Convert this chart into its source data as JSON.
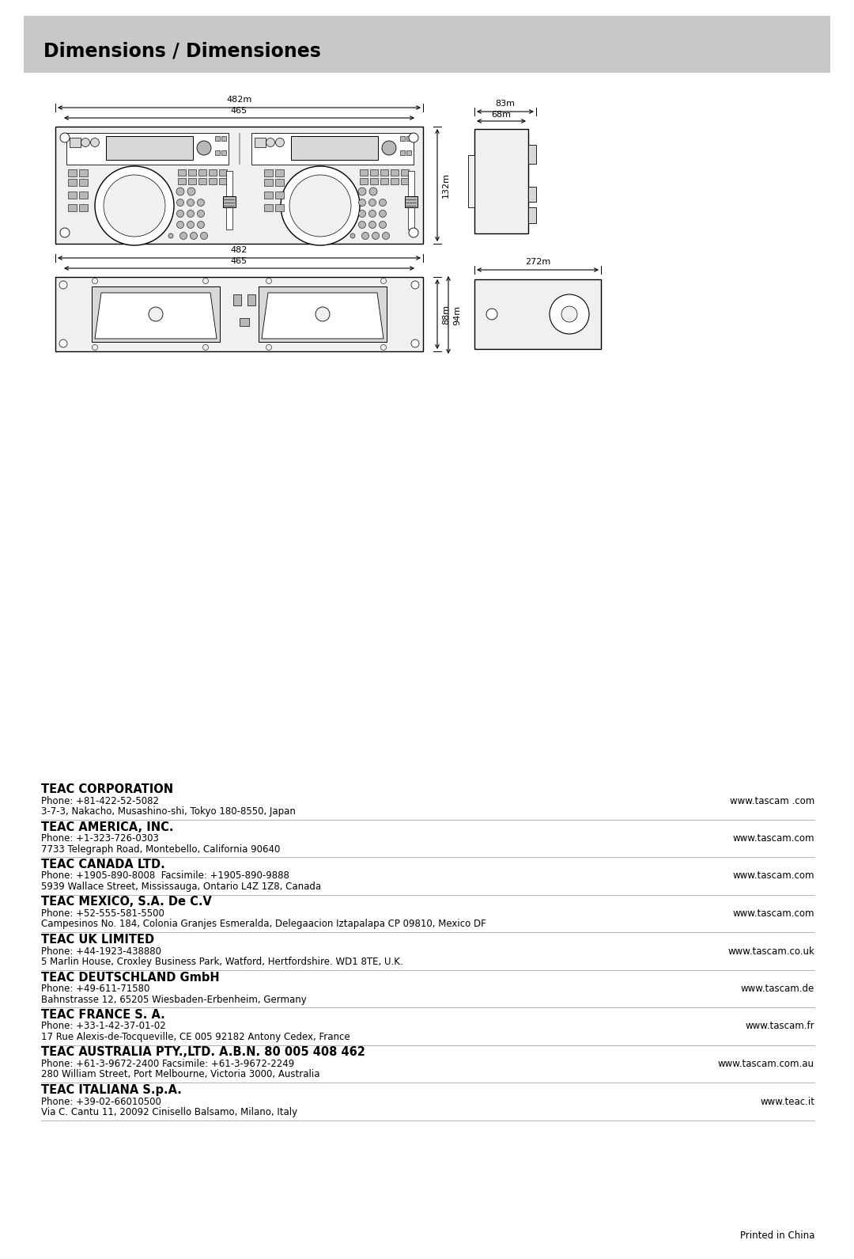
{
  "title": "Dimensions / Dimensiones",
  "title_bg_color": "#c8c8c8",
  "page_bg_color": "#ffffff",
  "title_text_color": "#000000",
  "title_fontsize": 17,
  "companies": [
    {
      "name": "TEAC CORPORATION",
      "lines": [
        "Phone: +81-422-52-5082",
        "3-7-3, Nakacho, Musashino-shi, Tokyo 180-8550, Japan"
      ],
      "website": "www.tascam .com"
    },
    {
      "name": "TEAC AMERICA, INC.",
      "lines": [
        "Phone: +1-323-726-0303",
        "7733 Telegraph Road, Montebello, California 90640"
      ],
      "website": "www.tascam.com"
    },
    {
      "name": "TEAC CANADA LTD.",
      "lines": [
        "Phone: +1905-890-8008  Facsimile: +1905-890-9888",
        "5939 Wallace Street, Mississauga, Ontario L4Z 1Z8, Canada"
      ],
      "website": "www.tascam.com"
    },
    {
      "name": "TEAC MEXICO, S.A. De C.V",
      "lines": [
        "Phone: +52-555-581-5500",
        "Campesinos No. 184, Colonia Granjes Esmeralda, Delegaacion Iztapalapa CP 09810, Mexico DF"
      ],
      "website": "www.tascam.com"
    },
    {
      "name": "TEAC UK LIMITED",
      "lines": [
        "Phone: +44-1923-438880",
        "5 Marlin House, Croxley Business Park, Watford, Hertfordshire. WD1 8TE, U.K."
      ],
      "website": "www.tascam.co.uk"
    },
    {
      "name": "TEAC DEUTSCHLAND GmbH",
      "lines": [
        "Phone: +49-611-71580",
        "Bahnstrasse 12, 65205 Wiesbaden-Erbenheim, Germany"
      ],
      "website": "www.tascam.de"
    },
    {
      "name": "TEAC FRANCE S. A.",
      "lines": [
        "Phone: +33-1-42-37-01-02",
        "17 Rue Alexis-de-Tocqueville, CE 005 92182 Antony Cedex, France"
      ],
      "website": "www.tascam.fr"
    },
    {
      "name": "TEAC AUSTRALIA PTY.,LTD. A.B.N. 80 005 408 462",
      "lines": [
        "Phone: +61-3-9672-2400 Facsimile: +61-3-9672-2249",
        "280 William Street, Port Melbourne, Victoria 3000, Australia"
      ],
      "website": "www.tascam.com.au"
    },
    {
      "name": "TEAC ITALIANA S.p.A.",
      "lines": [
        "Phone: +39-02-66010500",
        "Via C. Cantu 11, 20092 Cinisello Balsamo, Milano, Italy"
      ],
      "website": "www.teac.it"
    }
  ],
  "footer": "Printed in China"
}
